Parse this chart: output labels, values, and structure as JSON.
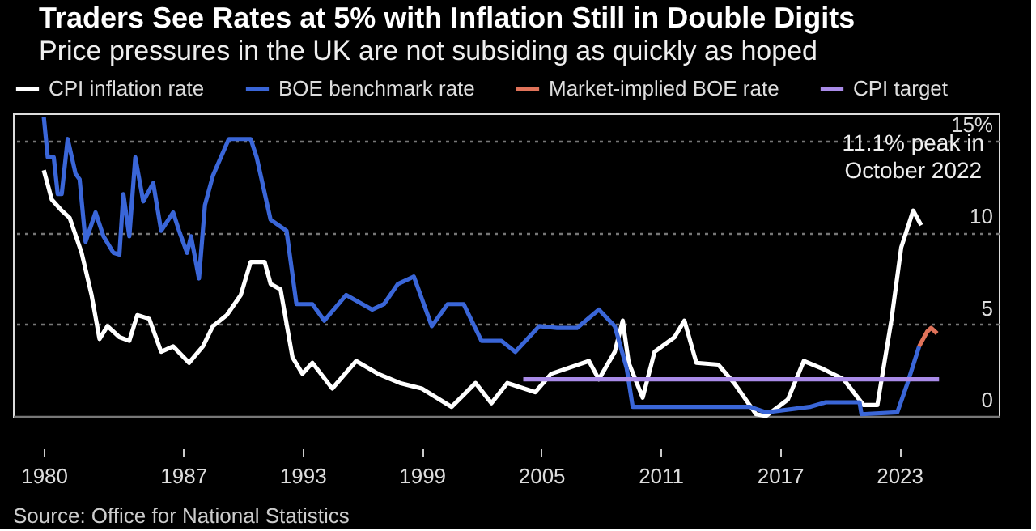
{
  "chart_data": {
    "type": "line",
    "title": "Traders See Rates at 5% with Inflation Still in Double Digits",
    "subtitle": "Price pressures in the UK are not subsiding as quickly as hoped",
    "series": [
      {
        "name": "CPI inflation rate",
        "color": "#ffffff",
        "x": [
          1980.0,
          1980.4,
          1980.9,
          1981.3,
          1981.9,
          1982.4,
          1982.8,
          1983.2,
          1983.8,
          1984.3,
          1984.7,
          1985.3,
          1985.9,
          1986.5,
          1987.3,
          1988.0,
          1988.5,
          1989.2,
          1989.9,
          1990.4,
          1991.1,
          1991.4,
          1991.9,
          1992.5,
          1993.0,
          1993.5,
          1994.5,
          1995.7,
          1996.8,
          1997.9,
          1999.0,
          2000.5,
          2001.7,
          2002.5,
          2003.3,
          2004.7,
          2005.5,
          2007.4,
          2007.9,
          2008.7,
          2009.1,
          2009.4,
          2010.1,
          2010.7,
          2011.7,
          2012.2,
          2012.8,
          2013.9,
          2014.7,
          2015.8,
          2016.3,
          2017.4,
          2018.2,
          2019.1,
          2020.2,
          2021.2,
          2021.9,
          2022.6,
          2023.1,
          2023.7,
          2024.1
        ],
        "values": [
          13.4,
          11.8,
          11.2,
          10.8,
          8.9,
          6.6,
          4.2,
          4.9,
          4.3,
          4.1,
          5.5,
          5.3,
          3.5,
          3.8,
          2.9,
          3.8,
          4.9,
          5.5,
          6.6,
          8.4,
          8.4,
          7.2,
          6.9,
          3.2,
          2.3,
          2.9,
          1.5,
          3.0,
          2.3,
          1.8,
          1.5,
          0.5,
          1.8,
          0.7,
          1.8,
          1.3,
          2.3,
          3.0,
          2.0,
          3.5,
          5.2,
          2.9,
          1.0,
          3.5,
          4.3,
          5.2,
          2.9,
          2.8,
          1.8,
          0.1,
          0.0,
          0.9,
          3.0,
          2.6,
          2.0,
          0.6,
          0.6,
          5.2,
          9.2,
          11.2,
          10.4
        ]
      },
      {
        "name": "BOE benchmark rate",
        "color": "#3a66d8",
        "x": [
          1980.0,
          1980.2,
          1980.5,
          1980.7,
          1980.9,
          1981.2,
          1981.6,
          1981.8,
          1982.1,
          1982.6,
          1983.0,
          1983.5,
          1983.8,
          1984.0,
          1984.3,
          1984.6,
          1985.0,
          1985.5,
          1985.9,
          1986.5,
          1986.8,
          1987.2,
          1987.4,
          1987.8,
          1988.1,
          1988.5,
          1989.3,
          1990.4,
          1990.7,
          1991.4,
          1992.2,
          1992.7,
          1993.5,
          1994.1,
          1995.2,
          1996.5,
          1997.1,
          1997.8,
          1998.6,
          1999.5,
          2000.3,
          2001.1,
          2002.0,
          2003.0,
          2003.7,
          2004.9,
          2005.8,
          2006.8,
          2007.9,
          2008.7,
          2009.3,
          2009.6,
          2015.5,
          2016.3,
          2018.5,
          2019.3,
          2021.0,
          2021.1,
          2022.9,
          2023.4,
          2024.0
        ],
        "values": [
          16.3,
          14.1,
          14.1,
          12.1,
          12.1,
          15.1,
          13.2,
          12.9,
          9.5,
          11.1,
          9.8,
          8.9,
          8.8,
          12.1,
          9.8,
          14.1,
          11.7,
          12.7,
          10.1,
          11.1,
          10.1,
          8.9,
          9.8,
          7.5,
          11.5,
          13.1,
          15.1,
          15.1,
          14.1,
          10.7,
          10.1,
          6.1,
          6.1,
          5.2,
          6.6,
          5.8,
          6.1,
          7.2,
          7.6,
          4.9,
          6.1,
          6.1,
          4.1,
          4.1,
          3.5,
          4.9,
          4.8,
          4.8,
          5.8,
          4.9,
          2.6,
          0.5,
          0.5,
          0.2,
          0.5,
          0.75,
          0.75,
          0.1,
          0.2,
          1.75,
          3.8
        ]
      },
      {
        "name": "Market-implied BOE rate",
        "color": "#e0735a",
        "x": [
          2024.0,
          2024.4,
          2024.6,
          2024.9
        ],
        "values": [
          3.8,
          4.6,
          4.8,
          4.5
        ]
      },
      {
        "name": "CPI target",
        "color": "#a98be8",
        "x": [
          2004.1,
          2025.0
        ],
        "values": [
          2.0,
          2.0
        ]
      }
    ],
    "xlim": [
      1978.45,
      2028.0
    ],
    "ylim": [
      0,
      16.5
    ],
    "xticks": [
      1980,
      1987,
      1993,
      1999,
      2005,
      2011,
      2017,
      2023
    ],
    "yticks": [
      0,
      5,
      10,
      {
        "value": 15,
        "label": "15%"
      }
    ],
    "grid": "y",
    "legend": "top",
    "marker": "none",
    "line_style": "solid",
    "annotations": [
      {
        "text": "11.1% peak in\nOctober 2022",
        "x": 2023.7,
        "y": 11.2
      },
      "Source: Office for National Statistics"
    ]
  }
}
